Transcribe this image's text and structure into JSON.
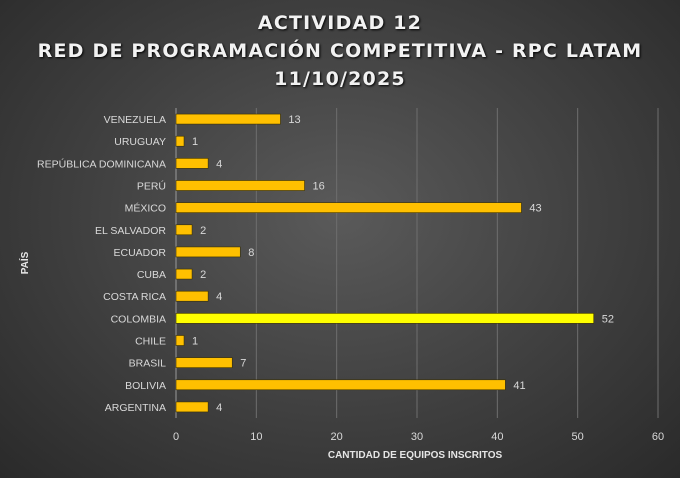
{
  "chart_data": {
    "type": "bar",
    "orientation": "horizontal",
    "title": [
      "ACTIVIDAD 12",
      "RED DE PROGRAMACIÓN COMPETITIVA - RPC LATAM",
      "11/10/2025"
    ],
    "xlabel": "CANTIDAD DE EQUIPOS INSCRITOS",
    "ylabel": "PAÍS",
    "xlim": [
      0,
      60
    ],
    "xticks": [
      0,
      10,
      20,
      30,
      40,
      50,
      60
    ],
    "grid": true,
    "categories": [
      "VENEZUELA",
      "URUGUAY",
      "REPÚBLICA DOMINICANA",
      "PERÚ",
      "MÉXICO",
      "EL SALVADOR",
      "ECUADOR",
      "CUBA",
      "COSTA RICA",
      "COLOMBIA",
      "CHILE",
      "BRASIL",
      "BOLIVIA",
      "ARGENTINA"
    ],
    "values": [
      13,
      1,
      4,
      16,
      43,
      2,
      8,
      2,
      4,
      52,
      1,
      7,
      41,
      4
    ],
    "colors": {
      "bar": "#FFC000",
      "highlight": "#FFFF00",
      "highlight_category": "COLOMBIA",
      "text": "#d9d9d9",
      "grid": "#6e6e6e"
    }
  }
}
